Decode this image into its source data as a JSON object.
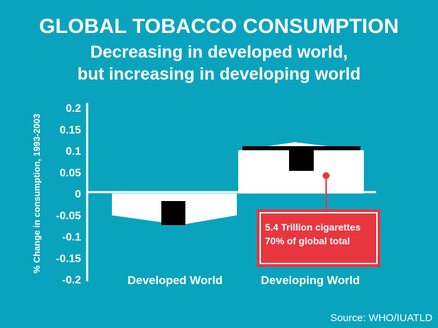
{
  "title": "GLOBAL TOBACCO CONSUMPTION",
  "subtitle_line1": "Decreasing in developed world,",
  "subtitle_line2": "but increasing in developing world",
  "source": "Source: WHO/IUATLD",
  "colors": {
    "background": "#0aa3bd",
    "bars": "#ffffff",
    "marker": "#000000",
    "callout": "#e8363f"
  },
  "chart_data": {
    "type": "bar",
    "categories": [
      "Developed World",
      "Developing World"
    ],
    "values": [
      -0.07,
      0.11
    ],
    "ylabel": "% Change in consumption, 1993-2003",
    "ylim": [
      -0.2,
      0.2
    ],
    "yticks": [
      "0.2",
      "0.15",
      "0.1",
      "0.05",
      "0",
      "-0.05",
      "-0.1",
      "-0.15",
      "-0.2"
    ],
    "grid": false,
    "annotation": {
      "category": "Developing World",
      "lines": [
        "5.4 Trillion cigarettes",
        "70% of global total"
      ]
    }
  }
}
